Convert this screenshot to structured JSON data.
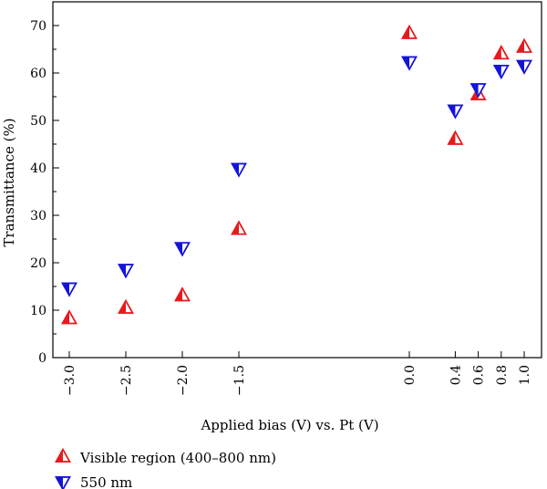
{
  "chart_data": {
    "type": "scatter",
    "xlabel": "Applied bias (V) vs. Pt (V)",
    "ylabel": "Transmittance (%)",
    "ylim": [
      0,
      75
    ],
    "yticks": [
      0,
      10,
      20,
      30,
      40,
      50,
      60,
      70
    ],
    "xticks": [
      -3.0,
      -2.5,
      -2.0,
      -1.5,
      0.0,
      0.4,
      0.6,
      0.8,
      1.0
    ],
    "xtick_labels": [
      "−3.0",
      "−2.5",
      "−2.0",
      "−1.5",
      "0.0",
      "0.4",
      "0.6",
      "0.8",
      "1.0"
    ],
    "legend_position": "bottom-left",
    "grid": false,
    "series": [
      {
        "name": "Visible region (400–800 nm)",
        "marker": "triangle-up",
        "color": "#e8191c",
        "x": [
          -3.0,
          -2.5,
          -2.0,
          -1.5,
          0.0,
          0.4,
          0.6,
          0.8,
          1.0
        ],
        "y": [
          8.2,
          10.4,
          13.0,
          27.0,
          68.3,
          46.0,
          55.4,
          64.0,
          65.4
        ]
      },
      {
        "name": "550 nm",
        "marker": "triangle-down",
        "color": "#1414d8",
        "x": [
          -3.0,
          -2.5,
          -2.0,
          -1.5,
          0.0,
          0.4,
          0.6,
          0.8,
          1.0
        ],
        "y": [
          14.7,
          18.6,
          23.2,
          39.9,
          62.4,
          52.2,
          56.7,
          60.6,
          61.6
        ]
      }
    ]
  }
}
